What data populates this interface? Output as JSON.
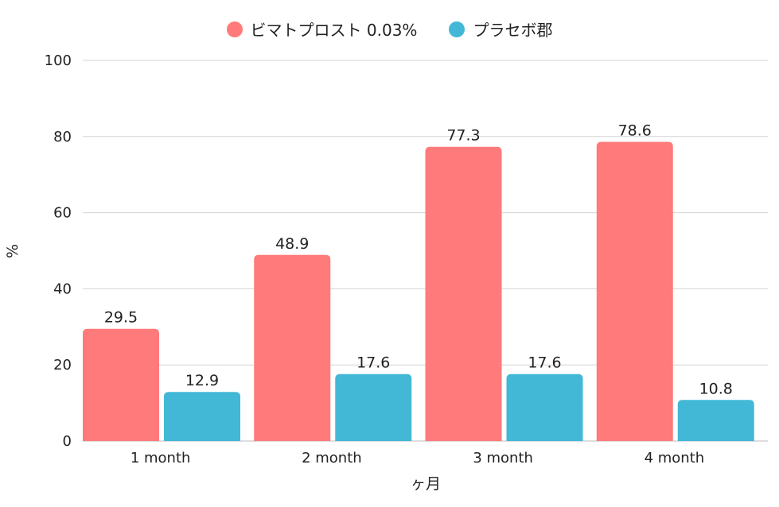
{
  "chart_data": {
    "type": "bar",
    "categories": [
      "1 month",
      "2 month",
      "3 month",
      "4 month"
    ],
    "series": [
      {
        "name": "ビマトプロスト 0.03%",
        "values": [
          29.5,
          48.9,
          77.3,
          78.6
        ],
        "color": "#ff7a7a"
      },
      {
        "name": "プラセボ郡",
        "values": [
          12.9,
          17.6,
          17.6,
          10.8
        ],
        "color": "#42b8d6"
      }
    ],
    "xlabel": "ヶ月",
    "ylabel": "%",
    "ylim": [
      0,
      100
    ],
    "yticks": [
      0,
      20,
      40,
      60,
      80,
      100
    ],
    "grid": true,
    "legend_position": "top-center"
  }
}
